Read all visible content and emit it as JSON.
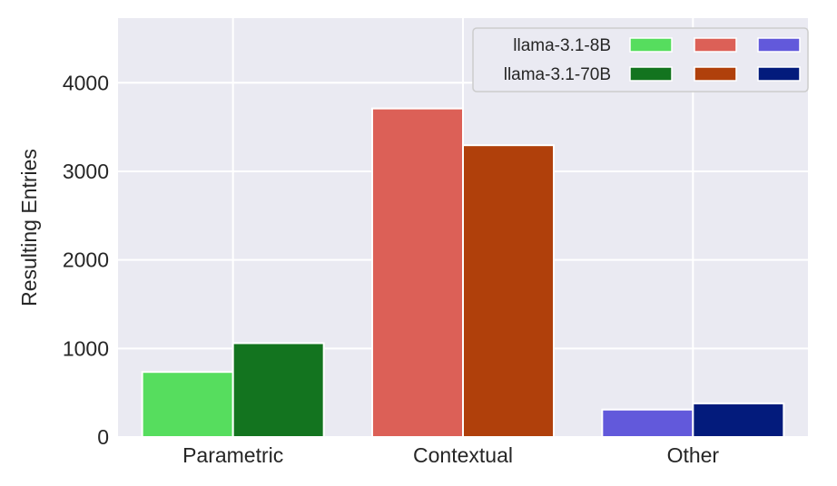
{
  "chart_data": {
    "type": "bar",
    "categories": [
      "Parametric",
      "Contextual",
      "Other"
    ],
    "ylabel": "Resulting Entries",
    "xlabel": "",
    "ylim": [
      0,
      4730
    ],
    "yticks": [
      0,
      1000,
      2000,
      3000,
      4000
    ],
    "grid": true,
    "legend_position": "top-right",
    "series": [
      {
        "name": "llama-3.1-8B",
        "values": [
          735,
          3710,
          310
        ],
        "colors": [
          "#56dd5e",
          "#dc6057",
          "#6259db"
        ]
      },
      {
        "name": "llama-3.1-70B",
        "values": [
          1060,
          3295,
          380
        ],
        "colors": [
          "#13741f",
          "#b0400b",
          "#031b7c"
        ]
      }
    ],
    "background_color": "#eaeaf2"
  }
}
